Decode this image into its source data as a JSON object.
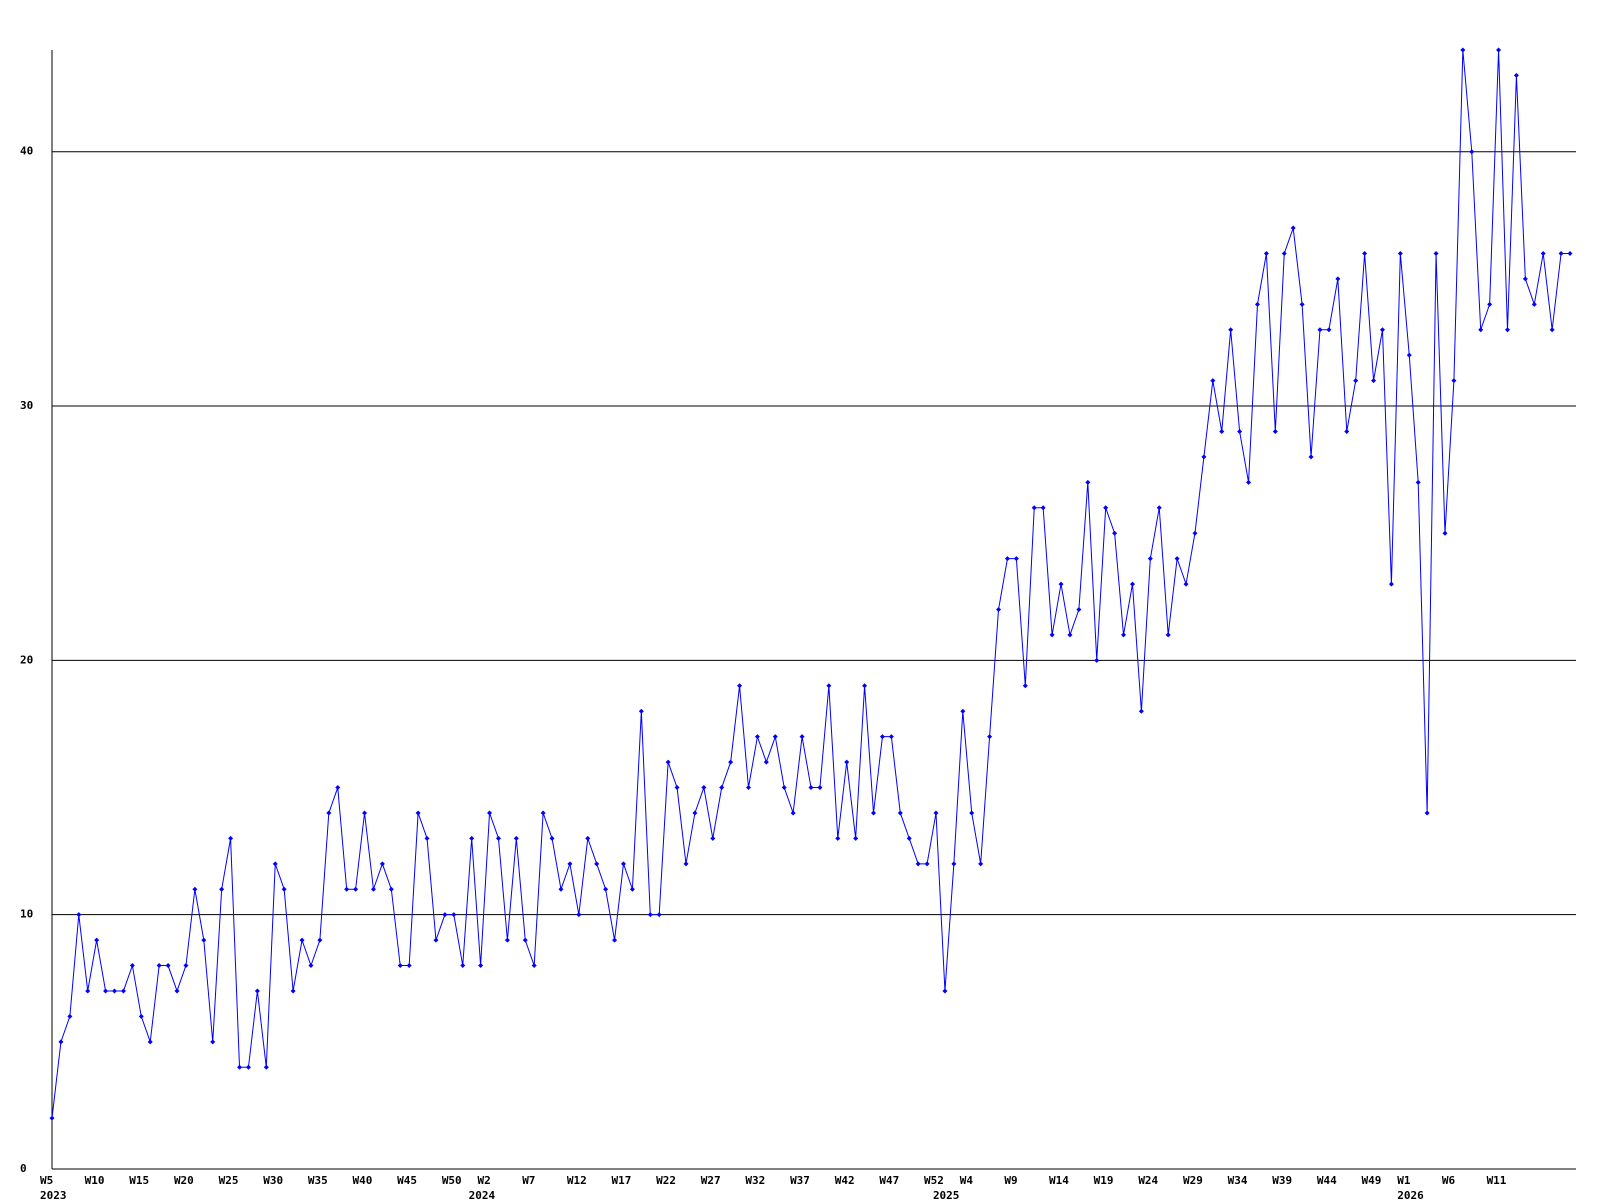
{
  "chart_data": {
    "type": "line",
    "categories": [
      "W5",
      null,
      null,
      null,
      null,
      "W10",
      null,
      null,
      null,
      null,
      "W15",
      null,
      null,
      null,
      null,
      "W20",
      null,
      null,
      null,
      null,
      "W25",
      null,
      null,
      null,
      null,
      "W30",
      null,
      null,
      null,
      null,
      "W35",
      null,
      null,
      null,
      null,
      "W40",
      null,
      null,
      null,
      null,
      "W45",
      null,
      null,
      null,
      null,
      "W50",
      null,
      null,
      null,
      "W2",
      null,
      null,
      null,
      null,
      "W7",
      null,
      null,
      null,
      null,
      "W12",
      null,
      null,
      null,
      null,
      "W17",
      null,
      null,
      null,
      null,
      "W22",
      null,
      null,
      null,
      null,
      "W27",
      null,
      null,
      null,
      null,
      "W32",
      null,
      null,
      null,
      null,
      "W37",
      null,
      null,
      null,
      null,
      "W42",
      null,
      null,
      null,
      null,
      "W47",
      null,
      null,
      null,
      null,
      "W52",
      null,
      null,
      null,
      "W4",
      null,
      null,
      null,
      null,
      "W9",
      null,
      null,
      null,
      null,
      "W14",
      null,
      null,
      null,
      null,
      "W19",
      null,
      null,
      null,
      null,
      "W24",
      null,
      null,
      null,
      null,
      "W29",
      null,
      null,
      null,
      null,
      "W34",
      null,
      null,
      null,
      null,
      "W39",
      null,
      null,
      null,
      null,
      "W44",
      null,
      null,
      null,
      null,
      "W49",
      null,
      null,
      null,
      "W1",
      null,
      null,
      null,
      null,
      "W6",
      null,
      null,
      null,
      null,
      "W11",
      null,
      null,
      null,
      null,
      null,
      null,
      null,
      null
    ],
    "years": [
      "2023",
      null,
      null,
      null,
      null,
      null,
      null,
      null,
      null,
      null,
      null,
      null,
      null,
      null,
      null,
      null,
      null,
      null,
      null,
      null,
      null,
      null,
      null,
      null,
      null,
      null,
      null,
      null,
      null,
      null,
      null,
      null,
      null,
      null,
      null,
      null,
      null,
      null,
      null,
      null,
      null,
      null,
      null,
      null,
      null,
      null,
      null,
      null,
      "2024",
      null,
      null,
      null,
      null,
      null,
      null,
      null,
      null,
      null,
      null,
      null,
      null,
      null,
      null,
      null,
      null,
      null,
      null,
      null,
      null,
      null,
      null,
      null,
      null,
      null,
      null,
      null,
      null,
      null,
      null,
      null,
      null,
      null,
      null,
      null,
      null,
      null,
      null,
      null,
      null,
      null,
      null,
      null,
      null,
      null,
      null,
      null,
      null,
      null,
      null,
      null,
      "2025",
      null,
      null,
      null,
      null,
      null,
      null,
      null,
      null,
      null,
      null,
      null,
      null,
      null,
      null,
      null,
      null,
      null,
      null,
      null,
      null,
      null,
      null,
      null,
      null,
      null,
      null,
      null,
      null,
      null,
      null,
      null,
      null,
      null,
      null,
      null,
      null,
      null,
      null,
      null,
      null,
      null,
      null,
      null,
      null,
      null,
      null,
      null,
      null,
      null,
      null,
      null,
      "2026",
      null,
      null,
      null,
      null,
      null,
      null,
      null,
      null,
      null,
      null,
      null,
      null,
      null,
      null,
      null,
      null,
      null,
      null
    ],
    "values": [
      2,
      5,
      6,
      10,
      7,
      9,
      7,
      7,
      7,
      8,
      6,
      5,
      8,
      8,
      7,
      8,
      11,
      9,
      5,
      11,
      13,
      4,
      4,
      7,
      4,
      12,
      11,
      7,
      9,
      8,
      9,
      14,
      15,
      11,
      11,
      14,
      11,
      12,
      11,
      8,
      8,
      14,
      13,
      9,
      10,
      10,
      8,
      13,
      8,
      14,
      13,
      9,
      13,
      9,
      8,
      14,
      13,
      11,
      12,
      10,
      13,
      12,
      11,
      9,
      12,
      11,
      18,
      10,
      10,
      16,
      15,
      12,
      14,
      15,
      13,
      15,
      16,
      19,
      15,
      17,
      16,
      17,
      15,
      14,
      17,
      15,
      15,
      19,
      13,
      16,
      13,
      19,
      14,
      17,
      17,
      14,
      13,
      12,
      12,
      14,
      7,
      12,
      18,
      14,
      12,
      17,
      22,
      24,
      24,
      19,
      26,
      26,
      21,
      23,
      21,
      22,
      27,
      20,
      26,
      25,
      21,
      23,
      18,
      24,
      26,
      21,
      24,
      23,
      25,
      28,
      31,
      29,
      33,
      29,
      27,
      34,
      36,
      29,
      36,
      37,
      34,
      28,
      33,
      33,
      35,
      29,
      31,
      36,
      31,
      33,
      23,
      36,
      32,
      27,
      14,
      36,
      25,
      31,
      44,
      40,
      33,
      34,
      44,
      33,
      43,
      35,
      34,
      36,
      33,
      36,
      36
    ],
    "color": "#0000ff",
    "ylim": [
      0,
      44
    ],
    "yticks": [
      0,
      10,
      20,
      30,
      40
    ],
    "grid": true
  }
}
